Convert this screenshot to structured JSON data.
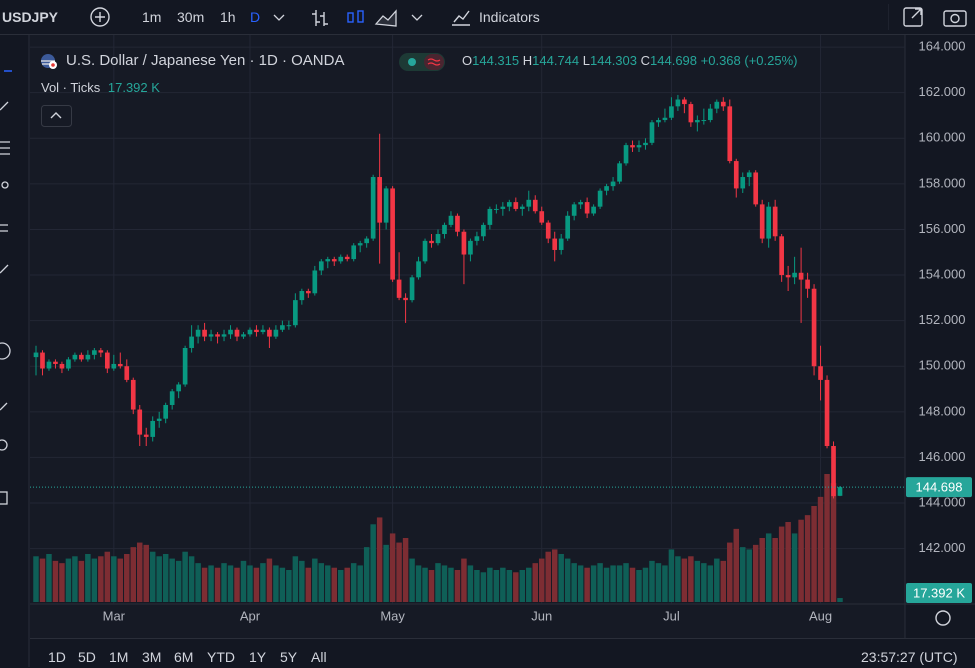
{
  "toolbar": {
    "symbol": "USDJPY",
    "intervals": [
      "1m",
      "30m",
      "1h",
      "D"
    ],
    "indicators": "Indicators"
  },
  "legend": {
    "title": "U.S. Dollar / Japanese Yen · 1D · OANDA",
    "ohlc_labels": [
      "O",
      "H",
      "L",
      "C"
    ],
    "change": "+0.368",
    "change_pct": "(+0.25%)",
    "volume_title": "Vol · Ticks"
  },
  "chart_data": {
    "type": "candlestick",
    "categories": [
      null,
      null,
      null,
      null,
      null,
      null,
      null,
      null,
      null,
      null,
      null,
      null,
      "Mar",
      null,
      null,
      null,
      null,
      null,
      null,
      null,
      null,
      null,
      null,
      null,
      null,
      null,
      null,
      null,
      null,
      null,
      null,
      null,
      null,
      "Apr",
      null,
      null,
      null,
      null,
      null,
      null,
      null,
      null,
      null,
      null,
      null,
      null,
      null,
      null,
      null,
      null,
      null,
      null,
      null,
      null,
      null,
      "May",
      null,
      null,
      null,
      null,
      null,
      null,
      null,
      null,
      null,
      null,
      null,
      null,
      null,
      null,
      null,
      null,
      null,
      null,
      null,
      null,
      null,
      null,
      "Jun",
      null,
      null,
      null,
      null,
      null,
      null,
      null,
      null,
      null,
      null,
      null,
      null,
      null,
      null,
      null,
      null,
      null,
      null,
      null,
      "Jul",
      null,
      null,
      null,
      null,
      null,
      null,
      null,
      null,
      null,
      null,
      null,
      null,
      null,
      null,
      null,
      null,
      null,
      null,
      null,
      null,
      null,
      null,
      "Aug",
      null,
      null,
      null
    ],
    "ohlc": [
      [
        150.4,
        150.9,
        149.6,
        150.6
      ],
      [
        150.6,
        150.7,
        149.6,
        149.9
      ],
      [
        149.9,
        150.3,
        149.8,
        150.2
      ],
      [
        150.2,
        150.3,
        149.9,
        150.1
      ],
      [
        150.1,
        150.2,
        149.7,
        149.9
      ],
      [
        149.9,
        150.4,
        149.8,
        150.3
      ],
      [
        150.3,
        150.6,
        150.2,
        150.5
      ],
      [
        150.5,
        150.6,
        150.2,
        150.3
      ],
      [
        150.3,
        150.7,
        150.2,
        150.5
      ],
      [
        150.5,
        150.8,
        150.3,
        150.7
      ],
      [
        150.7,
        150.8,
        150.4,
        150.6
      ],
      [
        150.6,
        150.7,
        149.7,
        149.9
      ],
      [
        149.9,
        150.5,
        149.8,
        150.1
      ],
      [
        150.1,
        150.6,
        149.9,
        150.0
      ],
      [
        150.0,
        150.3,
        149.3,
        149.4
      ],
      [
        149.4,
        149.5,
        147.9,
        148.1
      ],
      [
        148.1,
        148.3,
        146.5,
        147.0
      ],
      [
        147.0,
        147.3,
        146.5,
        146.9
      ],
      [
        146.9,
        147.8,
        146.7,
        147.6
      ],
      [
        147.6,
        148.0,
        147.3,
        147.7
      ],
      [
        147.7,
        148.4,
        147.5,
        148.3
      ],
      [
        148.3,
        149.0,
        148.1,
        148.9
      ],
      [
        148.9,
        149.3,
        148.6,
        149.2
      ],
      [
        149.2,
        150.9,
        149.1,
        150.8
      ],
      [
        150.8,
        151.8,
        150.6,
        151.3
      ],
      [
        151.3,
        151.8,
        151.0,
        151.6
      ],
      [
        151.6,
        151.9,
        151.1,
        151.3
      ],
      [
        151.3,
        151.6,
        151.1,
        151.4
      ],
      [
        151.4,
        151.5,
        151.0,
        151.3
      ],
      [
        151.3,
        151.6,
        151.1,
        151.4
      ],
      [
        151.4,
        151.8,
        151.2,
        151.6
      ],
      [
        151.6,
        151.7,
        151.1,
        151.3
      ],
      [
        151.3,
        151.5,
        151.2,
        151.4
      ],
      [
        151.4,
        151.7,
        151.3,
        151.6
      ],
      [
        151.6,
        151.8,
        151.3,
        151.5
      ],
      [
        151.5,
        151.8,
        151.4,
        151.6
      ],
      [
        151.6,
        151.7,
        150.8,
        151.3
      ],
      [
        151.3,
        151.8,
        151.2,
        151.6
      ],
      [
        151.6,
        152.0,
        151.5,
        151.8
      ],
      [
        151.8,
        152.0,
        151.6,
        151.8
      ],
      [
        151.8,
        153.2,
        151.7,
        152.9
      ],
      [
        152.9,
        153.4,
        152.7,
        153.3
      ],
      [
        153.3,
        153.4,
        153.0,
        153.2
      ],
      [
        153.2,
        154.4,
        153.1,
        154.2
      ],
      [
        154.2,
        154.7,
        154.0,
        154.6
      ],
      [
        154.6,
        154.8,
        154.3,
        154.7
      ],
      [
        154.7,
        154.8,
        154.4,
        154.6
      ],
      [
        154.6,
        154.9,
        154.5,
        154.8
      ],
      [
        154.8,
        154.9,
        154.6,
        154.7
      ],
      [
        154.7,
        155.4,
        154.6,
        155.3
      ],
      [
        155.3,
        155.5,
        155.0,
        155.4
      ],
      [
        155.4,
        155.7,
        155.2,
        155.6
      ],
      [
        155.6,
        158.4,
        155.5,
        158.3
      ],
      [
        158.3,
        160.2,
        154.5,
        156.3
      ],
      [
        156.3,
        157.9,
        156.0,
        157.8
      ],
      [
        157.8,
        157.9,
        153.7,
        153.8
      ],
      [
        153.8,
        155.0,
        152.9,
        153.0
      ],
      [
        153.0,
        153.2,
        151.9,
        152.9
      ],
      [
        152.9,
        154.0,
        152.8,
        153.9
      ],
      [
        153.9,
        154.8,
        153.8,
        154.6
      ],
      [
        154.6,
        155.6,
        154.5,
        155.5
      ],
      [
        155.5,
        155.8,
        155.2,
        155.4
      ],
      [
        155.4,
        156.0,
        155.3,
        155.8
      ],
      [
        155.8,
        156.3,
        155.6,
        156.2
      ],
      [
        156.2,
        156.8,
        156.1,
        156.6
      ],
      [
        156.6,
        156.7,
        155.7,
        155.9
      ],
      [
        155.9,
        156.0,
        153.6,
        154.9
      ],
      [
        154.9,
        155.6,
        154.6,
        155.5
      ],
      [
        155.5,
        155.9,
        155.3,
        155.7
      ],
      [
        155.7,
        156.3,
        155.5,
        156.2
      ],
      [
        156.2,
        157.0,
        156.0,
        156.9
      ],
      [
        156.9,
        157.1,
        156.7,
        156.9
      ],
      [
        156.9,
        157.2,
        156.6,
        157.0
      ],
      [
        157.0,
        157.3,
        156.8,
        157.2
      ],
      [
        157.2,
        157.4,
        156.8,
        156.9
      ],
      [
        156.9,
        157.1,
        156.6,
        157.0
      ],
      [
        157.0,
        157.7,
        156.8,
        157.3
      ],
      [
        157.3,
        157.5,
        156.7,
        156.8
      ],
      [
        156.8,
        157.0,
        156.2,
        156.3
      ],
      [
        156.3,
        156.4,
        155.4,
        155.6
      ],
      [
        155.6,
        155.9,
        154.6,
        155.1
      ],
      [
        155.1,
        155.8,
        154.9,
        155.6
      ],
      [
        155.6,
        156.8,
        155.5,
        156.6
      ],
      [
        156.6,
        157.2,
        156.4,
        157.1
      ],
      [
        157.1,
        157.3,
        156.9,
        157.2
      ],
      [
        157.2,
        157.4,
        156.5,
        156.7
      ],
      [
        156.7,
        157.1,
        156.6,
        157.0
      ],
      [
        157.0,
        157.8,
        156.9,
        157.7
      ],
      [
        157.7,
        158.0,
        157.5,
        157.9
      ],
      [
        157.9,
        158.3,
        157.7,
        158.1
      ],
      [
        158.1,
        159.0,
        158.0,
        158.9
      ],
      [
        158.9,
        159.8,
        158.8,
        159.7
      ],
      [
        159.7,
        159.9,
        159.4,
        159.6
      ],
      [
        159.6,
        159.9,
        159.4,
        159.7
      ],
      [
        159.7,
        160.0,
        159.5,
        159.8
      ],
      [
        159.8,
        160.8,
        159.7,
        160.7
      ],
      [
        160.7,
        160.9,
        160.5,
        160.8
      ],
      [
        160.8,
        161.3,
        160.7,
        160.9
      ],
      [
        160.9,
        161.8,
        160.8,
        161.4
      ],
      [
        161.4,
        161.9,
        161.2,
        161.7
      ],
      [
        161.7,
        161.8,
        161.1,
        161.5
      ],
      [
        161.5,
        161.6,
        160.5,
        160.7
      ],
      [
        160.7,
        161.0,
        160.3,
        160.8
      ],
      [
        160.8,
        161.3,
        160.6,
        160.8
      ],
      [
        160.8,
        161.5,
        160.7,
        161.3
      ],
      [
        161.3,
        161.7,
        161.1,
        161.6
      ],
      [
        161.6,
        161.8,
        161.2,
        161.4
      ],
      [
        161.4,
        161.7,
        158.9,
        159.0
      ],
      [
        159.0,
        159.1,
        157.4,
        157.8
      ],
      [
        157.8,
        158.5,
        157.6,
        158.3
      ],
      [
        158.3,
        158.6,
        157.9,
        158.5
      ],
      [
        158.5,
        158.6,
        157.0,
        157.1
      ],
      [
        157.1,
        157.3,
        155.4,
        155.6
      ],
      [
        155.6,
        157.2,
        155.2,
        157.0
      ],
      [
        157.0,
        157.3,
        155.5,
        155.7
      ],
      [
        155.7,
        155.8,
        153.7,
        154.0
      ],
      [
        154.0,
        154.4,
        153.3,
        153.9
      ],
      [
        153.9,
        154.8,
        153.6,
        154.1
      ],
      [
        154.1,
        155.2,
        151.9,
        153.8
      ],
      [
        153.8,
        154.1,
        153.0,
        153.4
      ],
      [
        153.4,
        153.6,
        149.6,
        150.0
      ],
      [
        150.0,
        150.9,
        148.5,
        149.4
      ],
      [
        149.4,
        149.6,
        146.4,
        146.5
      ],
      [
        146.5,
        146.7,
        144.2,
        144.3
      ],
      [
        144.315,
        144.744,
        144.303,
        144.698
      ]
    ],
    "up_color": "#089981",
    "down_color": "#f23645",
    "volume": {
      "values": [
        200,
        190,
        210,
        180,
        170,
        190,
        200,
        180,
        210,
        190,
        200,
        220,
        200,
        190,
        210,
        240,
        260,
        250,
        220,
        200,
        210,
        190,
        180,
        220,
        200,
        170,
        150,
        160,
        150,
        170,
        160,
        150,
        180,
        160,
        150,
        170,
        190,
        160,
        150,
        140,
        200,
        180,
        150,
        190,
        170,
        160,
        150,
        140,
        150,
        170,
        160,
        240,
        340,
        370,
        250,
        300,
        260,
        280,
        190,
        160,
        150,
        140,
        170,
        160,
        150,
        140,
        190,
        160,
        140,
        130,
        150,
        140,
        150,
        140,
        130,
        140,
        150,
        170,
        190,
        220,
        230,
        210,
        190,
        170,
        160,
        150,
        160,
        170,
        150,
        160,
        160,
        170,
        150,
        140,
        150,
        180,
        170,
        160,
        230,
        200,
        190,
        200,
        180,
        170,
        160,
        190,
        180,
        260,
        320,
        240,
        230,
        250,
        280,
        300,
        280,
        330,
        350,
        300,
        360,
        380,
        420,
        460,
        560,
        520,
        17.392
      ],
      "value_labels": [
        null,
        null,
        null,
        null,
        null,
        null,
        null,
        null,
        null,
        null,
        null,
        null,
        null,
        null,
        null,
        null,
        null,
        null,
        null,
        null,
        null,
        null,
        null,
        null,
        null,
        null,
        null,
        null,
        null,
        null,
        null,
        null,
        null,
        null,
        null,
        null,
        null,
        null,
        null,
        null,
        null,
        null,
        null,
        null,
        null,
        null,
        null,
        null,
        null,
        null,
        null,
        null,
        null,
        null,
        null,
        null,
        null,
        null,
        null,
        null,
        null,
        null,
        null,
        null,
        null,
        null,
        null,
        null,
        null,
        null,
        null,
        null,
        null,
        null,
        null,
        null,
        null,
        null,
        null,
        null,
        null,
        null,
        null,
        null,
        null,
        null,
        null,
        null,
        null,
        null,
        null,
        null,
        null,
        null,
        null,
        null,
        null,
        null,
        null,
        null,
        null,
        null,
        null,
        null,
        null,
        null,
        null,
        null,
        null,
        null,
        null,
        null,
        null,
        null,
        null,
        null,
        null,
        null,
        null,
        null,
        null,
        null,
        null,
        null,
        "17.392 K"
      ],
      "up_color": "#0f5f57",
      "down_color": "#7d2d33"
    },
    "ylim": [
      139.57,
      164.53
    ],
    "yticks": [
      {
        "value": 142,
        "label": "142.000"
      },
      {
        "value": 144,
        "label": "144.000"
      },
      {
        "value": 146,
        "label": "146.000"
      },
      {
        "value": 148,
        "label": "148.000"
      },
      {
        "value": 150,
        "label": "150.000"
      },
      {
        "value": 152,
        "label": "152.000"
      },
      {
        "value": 154,
        "label": "154.000"
      },
      {
        "value": 156,
        "label": "156.000"
      },
      {
        "value": 158,
        "label": "158.000"
      },
      {
        "value": 160,
        "label": "160.000"
      },
      {
        "value": 162,
        "label": "162.000"
      },
      {
        "value": 164,
        "label": "164.000"
      }
    ],
    "grid": true,
    "last_price_color": "#26a69a"
  },
  "footer": {
    "ranges": [
      "1D",
      "5D",
      "1M",
      "3M",
      "6M",
      "YTD",
      "1Y",
      "5Y",
      "All"
    ],
    "clock": "23:57:27 (UTC)"
  }
}
